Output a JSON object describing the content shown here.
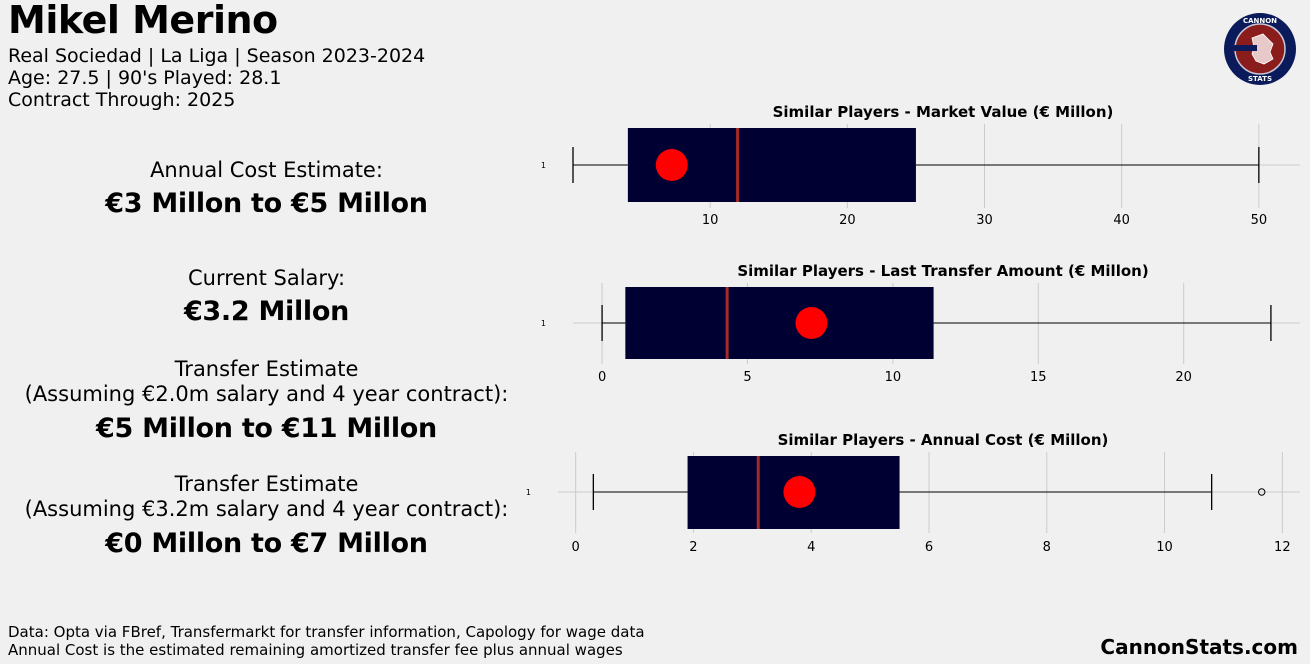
{
  "player": {
    "name": "Mikel Merino",
    "club_line": "Real Sociedad | La Liga | Season 2023-2024",
    "age_line": "Age: 27.5 | 90's Played: 28.1",
    "contract_line": "Contract Through: 2025"
  },
  "estimates": [
    {
      "label": "Annual Cost Estimate:",
      "value": "€3 Millon to €5 Millon"
    },
    {
      "label": "Current Salary:",
      "value": "€3.2 Millon"
    },
    {
      "label": "Transfer Estimate\n(Assuming €2.0m salary and 4 year contract):",
      "value": "€5 Millon to €11 Millon"
    },
    {
      "label": "Transfer Estimate\n(Assuming €3.2m salary and 4 year contract):",
      "value": "€0 Millon to €7 Millon"
    }
  ],
  "footer": {
    "line1": "Data: Opta via FBref, Transfermarkt for transfer information, Capology for wage data",
    "line2": "Annual Cost is the estimated remaining amortized transfer fee plus annual wages",
    "brand": "CannonStats.com"
  },
  "logo": {
    "top_text": "CANNON",
    "bottom_text": "STATS",
    "icon": "cannon-stats-logo"
  },
  "colors": {
    "box": "#000033",
    "median": "#a52a2a",
    "marker": "#ff0000",
    "background": "#f0f0f0",
    "grid": "#cbcbcb",
    "logo_ring": "#0b1a5a",
    "logo_inner": "#8b1c1c"
  },
  "chart_data": [
    {
      "type": "boxplot",
      "title": "Similar Players - Market Value (€ Millon)",
      "category": "1",
      "whisker_low": 0,
      "q1": 4,
      "median": 12,
      "q3": 25,
      "whisker_high": 50,
      "outliers": [],
      "player_value": 7.2,
      "xlim": [
        0,
        53
      ],
      "xticks": [
        10,
        20,
        30,
        40,
        50
      ]
    },
    {
      "type": "boxplot",
      "title": "Similar Players - Last Transfer Amount (€ Millon)",
      "category": "1",
      "whisker_low": 0,
      "q1": 0.8,
      "median": 4.3,
      "q3": 11.4,
      "whisker_high": 23,
      "outliers": [],
      "player_value": 7.2,
      "xlim": [
        -1,
        24
      ],
      "xticks": [
        0,
        5,
        10,
        15,
        20
      ]
    },
    {
      "type": "boxplot",
      "title": "Similar Players - Annual Cost (€ Millon)",
      "category": "1",
      "whisker_low": 0.3,
      "q1": 1.9,
      "median": 3.1,
      "q3": 5.5,
      "whisker_high": 10.8,
      "outliers": [
        11.65
      ],
      "player_value": 3.8,
      "xlim": [
        -0.3,
        12.3
      ],
      "xticks": [
        0,
        2,
        4,
        6,
        8,
        10,
        12
      ]
    }
  ]
}
